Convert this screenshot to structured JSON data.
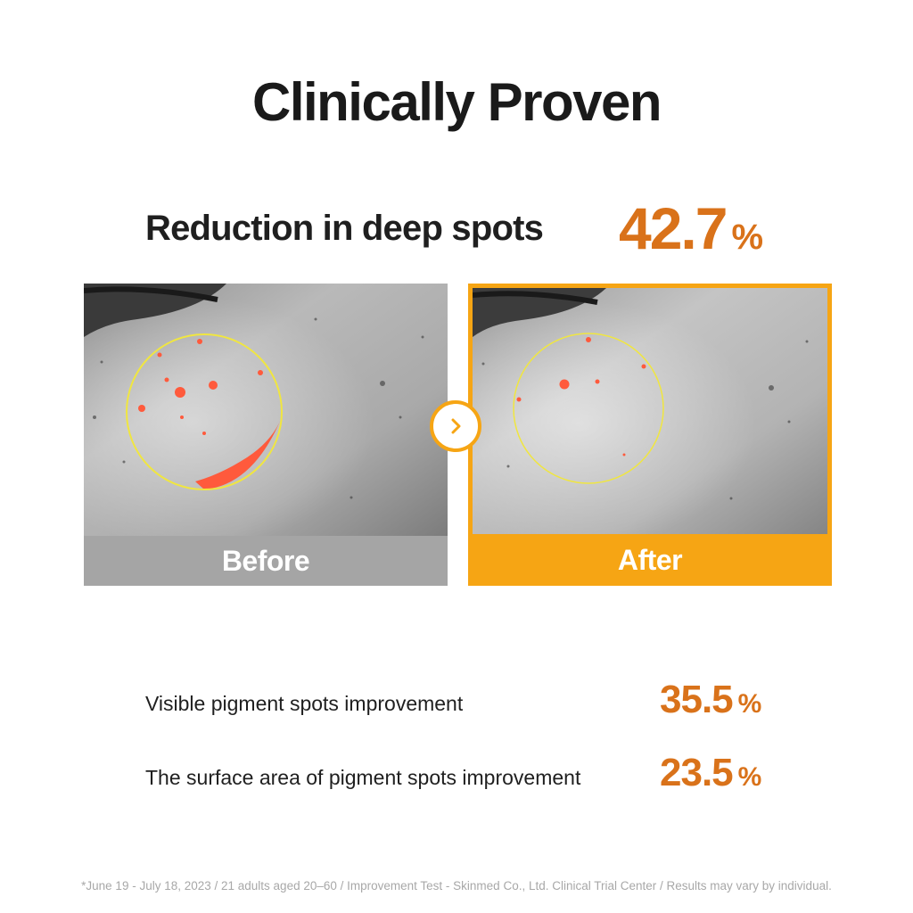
{
  "title": "Clinically Proven",
  "headline": {
    "label": "Reduction in deep spots",
    "value": "42.7",
    "unit": "%"
  },
  "before": {
    "caption": "Before"
  },
  "after": {
    "caption": "After"
  },
  "stats": [
    {
      "label": "Visible pigment spots improvement",
      "value": "35.5",
      "unit": "%"
    },
    {
      "label": "The surface area of pigment spots improvement",
      "value": "23.5",
      "unit": "%"
    }
  ],
  "footnote": "*June 19 - July 18, 2023 / 21 adults aged 20–60 / Improvement Test - Skinmed Co., Ltd. Clinical Trial Center / Results may vary by individual.",
  "colors": {
    "accent_orange": "#f6a514",
    "value_orange": "#d9721a",
    "spot_red": "#ff5a3c",
    "circle_yellow": "#f0e640"
  },
  "icons": {
    "arrow": "chevron-right-icon"
  }
}
